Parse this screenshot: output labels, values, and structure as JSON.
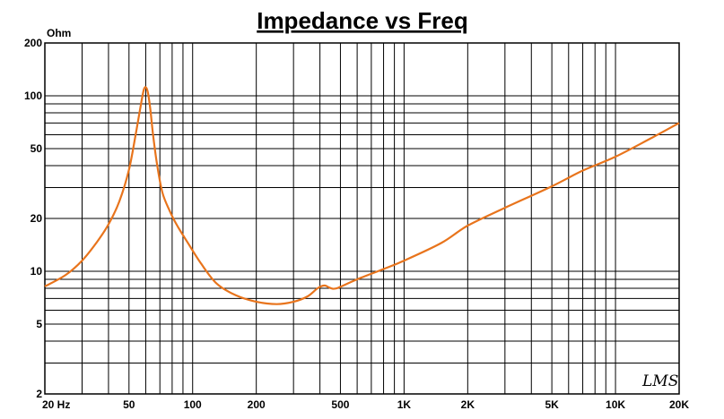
{
  "chart_data": {
    "type": "line",
    "title": "Impedance vs Freq",
    "ylabel": "Ohm",
    "xlabel": "",
    "x_scale": "log",
    "y_scale": "log",
    "xlim": [
      20,
      20000
    ],
    "ylim": [
      2,
      200
    ],
    "grid": true,
    "line_color": "#e8741c",
    "x_tick_values": [
      20,
      50,
      100,
      200,
      500,
      1000,
      2000,
      5000,
      10000,
      20000
    ],
    "x_tick_labels": [
      "20 Hz",
      "50",
      "100",
      "200",
      "500",
      "1K",
      "2K",
      "5K",
      "10K",
      "20K"
    ],
    "y_tick_values": [
      2,
      5,
      10,
      20,
      50,
      100,
      200
    ],
    "y_tick_labels": [
      "2",
      "5",
      "10",
      "20",
      "50",
      "100",
      "200"
    ],
    "watermark": "LMS",
    "series": [
      {
        "x": [
          20,
          25,
          30,
          35,
          40,
          45,
          50,
          54,
          57,
          59,
          61,
          63,
          65,
          68,
          72,
          78,
          85,
          95,
          110,
          130,
          160,
          200,
          250,
          300,
          350,
          390,
          420,
          440,
          460,
          480,
          500,
          600,
          800,
          1000,
          1500,
          2000,
          3000,
          5000,
          7000,
          10000,
          15000,
          20000
        ],
        "y": [
          8.2,
          9.5,
          11.5,
          14.5,
          18.5,
          25,
          38,
          62,
          90,
          110,
          108,
          85,
          60,
          40,
          28,
          22,
          18,
          14.5,
          11,
          8.5,
          7.3,
          6.7,
          6.5,
          6.7,
          7.2,
          8.0,
          8.3,
          8.1,
          7.95,
          8.0,
          8.15,
          9.0,
          10.3,
          11.5,
          14.5,
          18.2,
          23,
          30.5,
          37.5,
          45,
          58,
          70
        ]
      }
    ]
  }
}
